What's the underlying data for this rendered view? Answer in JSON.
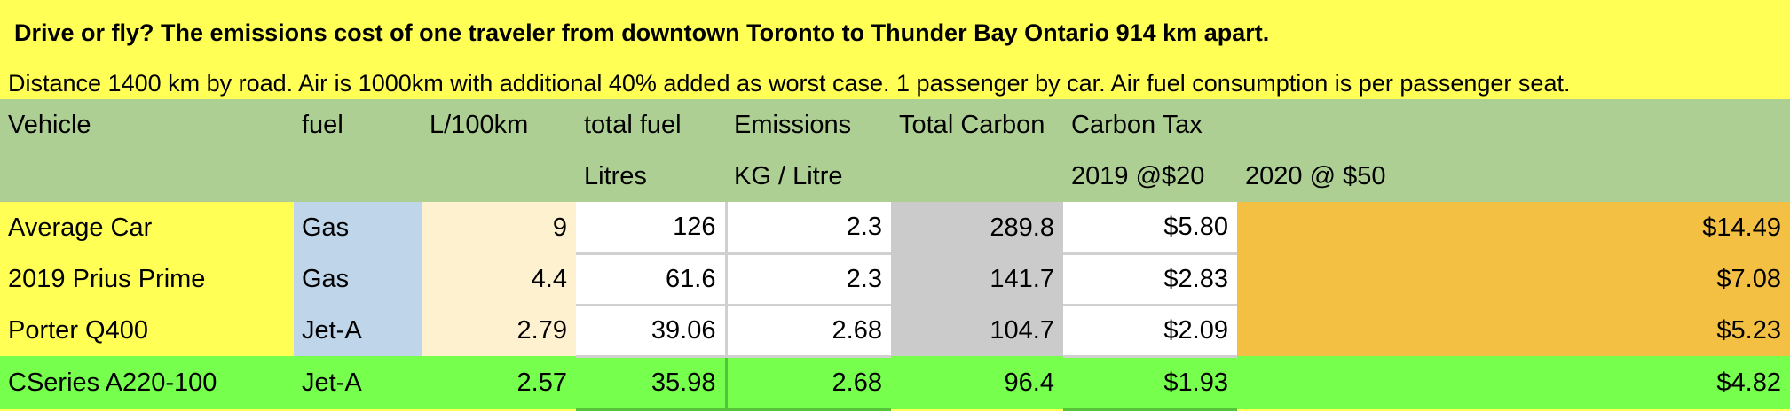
{
  "title": "Drive or fly?  The emissions cost of one traveler from downtown Toronto to Thunder Bay Ontario 914 km apart.",
  "subtitle": "Distance 1400 km by road. Air is 1000km with additional 40% added as worst case. 1 passenger by car. Air fuel consumption is per passenger seat.",
  "header_row1": [
    "Vehicle",
    "fuel",
    "L/100km",
    "total fuel",
    "Emissions",
    "Total Carbon",
    "Carbon Tax",
    ""
  ],
  "header_row2": [
    "",
    "",
    "",
    "Litres",
    "KG / Litre",
    "",
    "2019 @$20",
    "2020 @ $50"
  ],
  "rows": [
    [
      "Average Car",
      "Gas",
      "9",
      "126",
      "2.3",
      "289.8",
      "$5.80",
      "$14.49"
    ],
    [
      "2019 Prius Prime",
      "Gas",
      "4.4",
      "61.6",
      "2.3",
      "141.7",
      "$2.83",
      "$7.08"
    ],
    [
      "Porter Q400",
      "Jet-A",
      "2.79",
      "39.06",
      "2.68",
      "104.7",
      "$2.09",
      "$5.23"
    ],
    [
      "CSeries A220-100",
      "Jet-A",
      "2.57",
      "35.98",
      "2.68",
      "96.4",
      "$1.93",
      "$4.82"
    ]
  ],
  "colors": {
    "title_bg": "#ffff55",
    "header_bg": "#aecf94",
    "vehicle_col": "#ffff55",
    "fuel_col": "#bfd5ea",
    "consumption_col": "#fdf1cf",
    "total_carbon_col": "#cccbcb",
    "tax_2020_col": "#f4c044",
    "highlight_row": "#76ff4d"
  }
}
